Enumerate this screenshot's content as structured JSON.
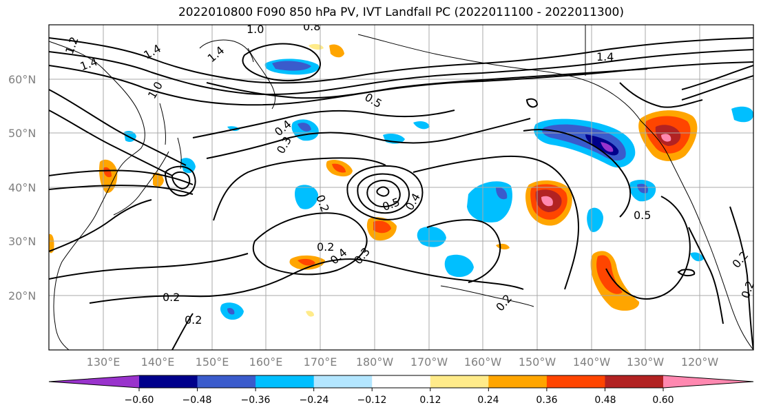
{
  "title": "2022010800 F090 850 hPa PV, IVT Landfall PC (2022011100 - 2022011300)",
  "lat_labels": [
    "60°N",
    "50°N",
    "40°N",
    "30°N",
    "20°N"
  ],
  "lon_labels": [
    "130°E",
    "140°E",
    "150°E",
    "160°E",
    "170°E",
    "180°W",
    "170°W",
    "160°W",
    "150°W",
    "140°W",
    "130°W",
    "120°W"
  ],
  "colorbar": {
    "colors": [
      "#9933cc",
      "#00008b",
      "#3a5bcc",
      "#00bfff",
      "#b3e6ff",
      "#ffffff",
      "#ffeb8a",
      "#ffa500",
      "#ff4500",
      "#b22222",
      "#ff88b0"
    ],
    "tick_labels": [
      "−0.60",
      "−0.48",
      "−0.36",
      "−0.24",
      "−0.12",
      "0.12",
      "0.24",
      "0.36",
      "0.48",
      "0.60"
    ]
  },
  "contour_labels": [
    "1.0",
    "0.8",
    "1.2",
    "1.4",
    "1.4",
    "1.4",
    "1.4",
    "1.0",
    "0.5",
    "0.4",
    "0.3",
    "0.2",
    "0.5",
    "0.4",
    "0.2",
    "0.4",
    "0.3",
    "0.2",
    "0.2",
    "0.2",
    "0.5",
    "0.2",
    "0.2"
  ]
}
